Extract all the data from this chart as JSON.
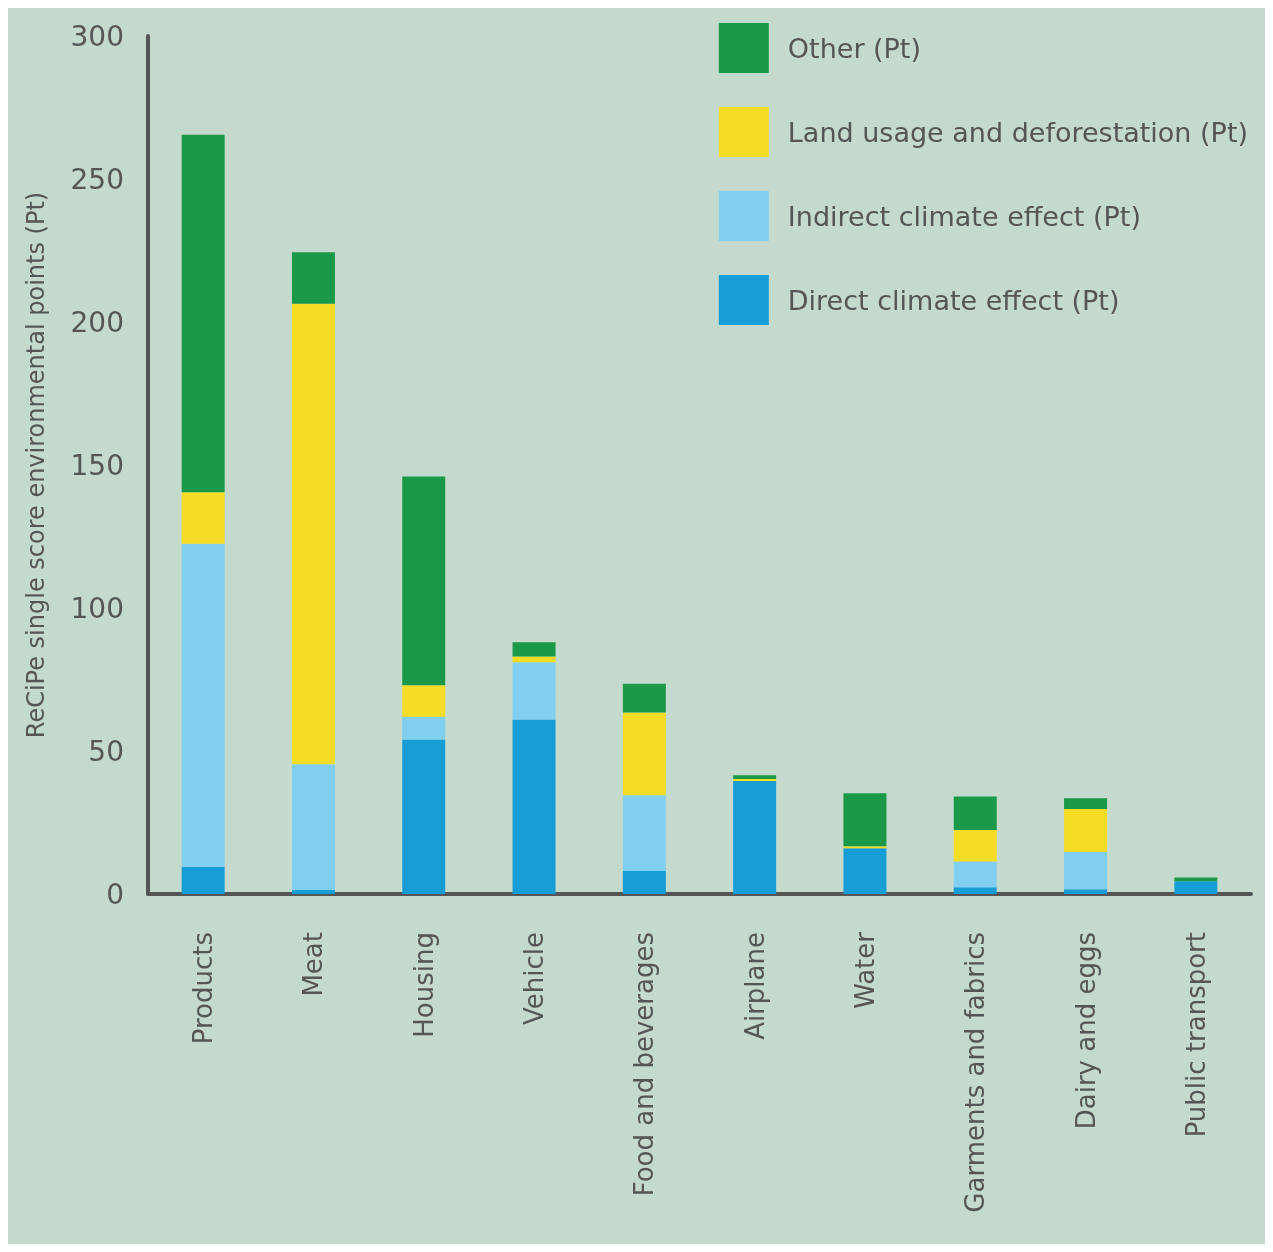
{
  "chart_data": {
    "type": "bar",
    "stacked": true,
    "ylabel": "ReCiPe single score environmental points (Pt)",
    "categories": [
      "Products",
      "Meat",
      "Housing",
      "Vehicle",
      "Food and beverages",
      "Airplane",
      "Water",
      "Garments and fabrics",
      "Dairy and eggs",
      "Public transport"
    ],
    "series": [
      {
        "name": "Direct climate effect (Pt)",
        "color": "#169dd6",
        "values": [
          9.5,
          1.4,
          54,
          61,
          8,
          39.5,
          16,
          2.4,
          1.7,
          4.5
        ]
      },
      {
        "name": "Indirect climate effect (Pt)",
        "color": "#80cef0",
        "values": [
          113,
          44,
          8,
          20,
          26.5,
          0,
          0,
          9,
          13,
          0
        ]
      },
      {
        "name": "Land usage and deforestation (Pt)",
        "color": "#f5dc25",
        "values": [
          18,
          161,
          11,
          2,
          29,
          0.7,
          0.7,
          11,
          15,
          0
        ]
      },
      {
        "name": "Other (Pt)",
        "color": "#1a9a48",
        "values": [
          125,
          18,
          73,
          5,
          10,
          1.3,
          18.5,
          11.7,
          3.8,
          1.3
        ]
      }
    ],
    "ylim": [
      0,
      300
    ],
    "yticks": [
      0,
      50,
      100,
      150,
      200,
      250,
      300
    ],
    "grid": false,
    "legend": "top right"
  }
}
